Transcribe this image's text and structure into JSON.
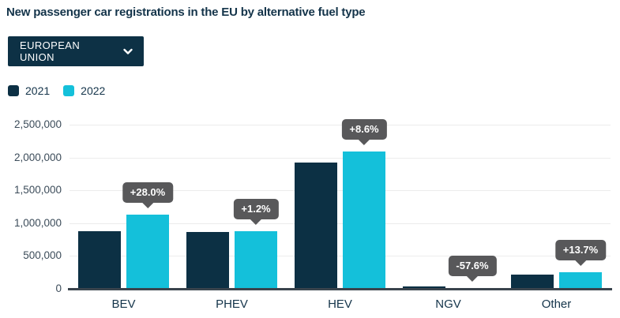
{
  "title": "New passenger car registrations in the EU by alternative fuel type",
  "dropdown": {
    "label": "EUROPEAN UNION",
    "icon": "chevron-down-icon"
  },
  "legend": {
    "items": [
      {
        "label": "2021"
      },
      {
        "label": "2022"
      }
    ]
  },
  "colors": {
    "navy": "#0c3044",
    "cyan": "#14c0da",
    "tooltip_bg": "#58585a",
    "grid": "#ececec",
    "axis": "#3a444d",
    "title_text": "#14344a",
    "tick_text": "#3c4c5a"
  },
  "chart_data": {
    "type": "bar",
    "title": "New passenger car registrations in the EU by alternative fuel type",
    "categories": [
      "BEV",
      "PHEV",
      "HEV",
      "NGV",
      "Other"
    ],
    "series": [
      {
        "name": "2021",
        "color": "#0c3044",
        "values": [
          878000,
          863000,
          1920000,
          33000,
          222000
        ]
      },
      {
        "name": "2022",
        "color": "#14c0da",
        "values": [
          1124000,
          873000,
          2086000,
          14000,
          252000
        ]
      }
    ],
    "change_labels": [
      "+28.0%",
      "+1.2%",
      "+8.6%",
      "-57.6%",
      "+13.7%"
    ],
    "y_ticks": [
      "2,500,000",
      "2,000,000",
      "1,500,000",
      "1,000,000",
      "500,000",
      "0"
    ],
    "ylim": [
      0,
      2500000
    ],
    "grid": true,
    "legend_position": "top-left",
    "xlabel": "",
    "ylabel": ""
  }
}
